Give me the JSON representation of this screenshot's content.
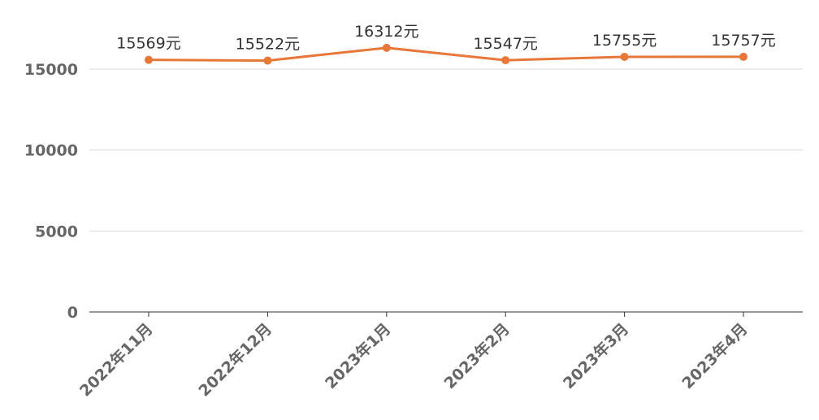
{
  "chart_data": {
    "type": "line",
    "categories": [
      "2022年11月",
      "2022年12月",
      "2023年1月",
      "2023年2月",
      "2023年3月",
      "2023年4月"
    ],
    "series": [
      {
        "values": [
          15569,
          15522,
          16312,
          15547,
          15755,
          15757
        ],
        "color": "#e8773a"
      }
    ],
    "data_labels": [
      "15569元",
      "15522元",
      "16312元",
      "15547元",
      "15755元",
      "15757元"
    ],
    "ylim": [
      0,
      15000
    ],
    "y_ticks": [
      "0",
      "5000",
      "10000",
      "15000"
    ],
    "grid": true,
    "legend": "none"
  }
}
